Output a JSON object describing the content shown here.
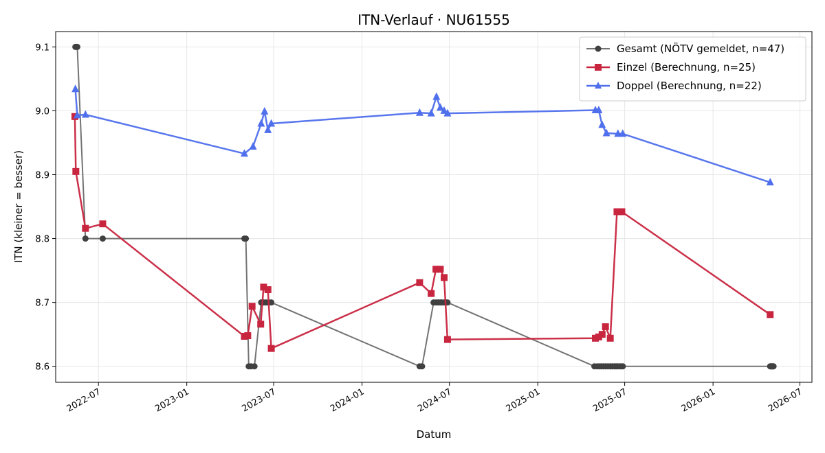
{
  "chart_data": {
    "type": "line",
    "title": "ITN-Verlauf · NU61555",
    "xlabel": "Datum",
    "ylabel": "ITN  (kleiner = besser)",
    "xlim": [
      "2022-04-03",
      "2026-07-26"
    ],
    "ylim": [
      8.575,
      9.124
    ],
    "x_ticks": [
      "2022-07-01",
      "2023-01-01",
      "2023-07-01",
      "2024-01-01",
      "2024-07-01",
      "2025-01-01",
      "2025-07-01",
      "2026-01-01",
      "2026-07-01"
    ],
    "x_tick_labels": [
      "2022-07",
      "2023-01",
      "2023-07",
      "2024-01",
      "2024-07",
      "2025-01",
      "2025-07",
      "2026-01",
      "2026-07"
    ],
    "y_ticks": [
      8.6,
      8.7,
      8.8,
      8.9,
      9.0,
      9.1
    ],
    "y_tick_labels": [
      "8.6",
      "8.7",
      "8.8",
      "8.9",
      "9.0",
      "9.1"
    ],
    "grid": true,
    "legend_position": "top-right",
    "series": [
      {
        "name": "Gesamt (NÖTV gemeldet, n=47)",
        "color": "#737373",
        "marker_color": "#404040",
        "marker": "circle",
        "points": [
          [
            "2022-05-14",
            9.1
          ],
          [
            "2022-05-16",
            9.1
          ],
          [
            "2022-05-18",
            9.1
          ],
          [
            "2022-06-04",
            8.8
          ],
          [
            "2022-07-10",
            8.8
          ],
          [
            "2023-05-01",
            8.8
          ],
          [
            "2023-05-04",
            8.8
          ],
          [
            "2023-05-10",
            8.6
          ],
          [
            "2023-05-15",
            8.6
          ],
          [
            "2023-05-22",
            8.6
          ],
          [
            "2023-06-05",
            8.7
          ],
          [
            "2023-06-10",
            8.7
          ],
          [
            "2023-06-15",
            8.7
          ],
          [
            "2023-06-20",
            8.7
          ],
          [
            "2023-06-26",
            8.7
          ],
          [
            "2024-04-30",
            8.6
          ],
          [
            "2024-05-05",
            8.6
          ],
          [
            "2024-05-29",
            8.7
          ],
          [
            "2024-06-03",
            8.7
          ],
          [
            "2024-06-08",
            8.7
          ],
          [
            "2024-06-12",
            8.7
          ],
          [
            "2024-06-15",
            8.7
          ],
          [
            "2024-06-20",
            8.7
          ],
          [
            "2024-06-24",
            8.7
          ],
          [
            "2024-06-27",
            8.7
          ],
          [
            "2025-04-29",
            8.6
          ],
          [
            "2025-05-05",
            8.6
          ],
          [
            "2025-05-10",
            8.6
          ],
          [
            "2025-05-13",
            8.6
          ],
          [
            "2025-05-18",
            8.6
          ],
          [
            "2025-05-22",
            8.6
          ],
          [
            "2025-05-27",
            8.6
          ],
          [
            "2025-06-01",
            8.6
          ],
          [
            "2025-06-06",
            8.6
          ],
          [
            "2025-06-10",
            8.6
          ],
          [
            "2025-06-13",
            8.6
          ],
          [
            "2025-06-16",
            8.6
          ],
          [
            "2025-06-20",
            8.6
          ],
          [
            "2025-06-23",
            8.6
          ],
          [
            "2025-06-27",
            8.6
          ],
          [
            "2026-04-30",
            8.6
          ],
          [
            "2026-05-01",
            8.6
          ],
          [
            "2026-05-02",
            8.6
          ],
          [
            "2026-05-03",
            8.6
          ],
          [
            "2026-05-04",
            8.6
          ],
          [
            "2026-05-05",
            8.6
          ],
          [
            "2026-05-06",
            8.6
          ],
          [
            "2026-05-07",
            8.6
          ]
        ]
      },
      {
        "name": "Einzel (Berechnung, n=25)",
        "color": "#c8253f",
        "marker": "square",
        "points": [
          [
            "2022-05-13",
            8.991
          ],
          [
            "2022-05-15",
            8.905
          ],
          [
            "2022-06-04",
            8.816
          ],
          [
            "2022-07-10",
            8.823
          ],
          [
            "2023-05-01",
            8.647
          ],
          [
            "2023-05-08",
            8.648
          ],
          [
            "2023-05-17",
            8.694
          ],
          [
            "2023-06-04",
            8.666
          ],
          [
            "2023-06-10",
            8.724
          ],
          [
            "2023-06-19",
            8.72
          ],
          [
            "2023-06-26",
            8.628
          ],
          [
            "2024-04-30",
            8.731
          ],
          [
            "2024-05-24",
            8.714
          ],
          [
            "2024-06-03",
            8.752
          ],
          [
            "2024-06-12",
            8.752
          ],
          [
            "2024-06-20",
            8.739
          ],
          [
            "2024-06-27",
            8.642
          ],
          [
            "2025-05-01",
            8.644
          ],
          [
            "2025-05-08",
            8.646
          ],
          [
            "2025-05-15",
            8.65
          ],
          [
            "2025-05-22",
            8.662
          ],
          [
            "2025-06-01",
            8.644
          ],
          [
            "2025-06-15",
            8.842
          ],
          [
            "2025-06-25",
            8.842
          ],
          [
            "2026-04-30",
            8.681
          ]
        ]
      },
      {
        "name": "Doppel (Berechnung, n=22)",
        "color": "#4f6fec",
        "marker": "triangle",
        "points": [
          [
            "2022-05-14",
            9.034
          ],
          [
            "2022-05-18",
            8.993
          ],
          [
            "2022-06-04",
            8.994
          ],
          [
            "2023-05-01",
            8.933
          ],
          [
            "2023-05-19",
            8.944
          ],
          [
            "2023-06-05",
            8.98
          ],
          [
            "2023-06-12",
            8.999
          ],
          [
            "2023-06-19",
            8.97
          ],
          [
            "2023-06-26",
            8.98
          ],
          [
            "2024-04-30",
            8.997
          ],
          [
            "2024-05-24",
            8.996
          ],
          [
            "2024-06-04",
            9.022
          ],
          [
            "2024-06-12",
            9.005
          ],
          [
            "2024-06-20",
            9.0
          ],
          [
            "2024-06-27",
            8.996
          ],
          [
            "2025-05-01",
            9.001
          ],
          [
            "2025-05-08",
            9.001
          ],
          [
            "2025-05-15",
            8.978
          ],
          [
            "2025-05-24",
            8.965
          ],
          [
            "2025-06-17",
            8.964
          ],
          [
            "2025-06-27",
            8.964
          ],
          [
            "2026-04-30",
            8.888
          ]
        ]
      }
    ]
  }
}
